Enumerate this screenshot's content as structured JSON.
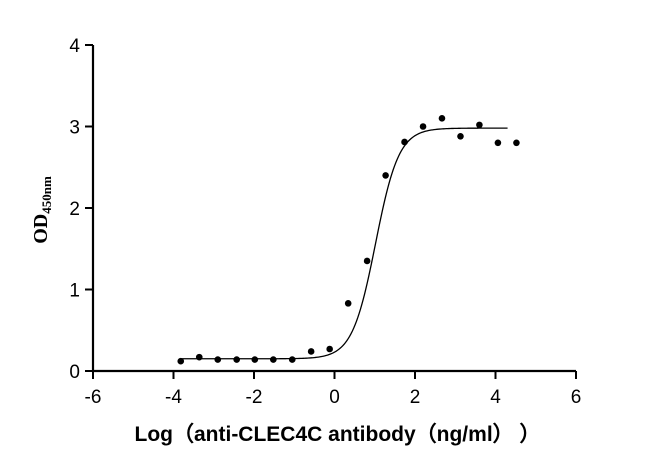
{
  "chart_data": {
    "type": "scatter",
    "title": "",
    "xlabel": "Log（anti-CLEC4C antibody（ng/ml） ）",
    "ylabel": "OD",
    "ylabel_subscript": "450nm",
    "xlim": [
      -6,
      6
    ],
    "ylim": [
      0,
      4
    ],
    "x_ticks": [
      "-6",
      "-4",
      "-2",
      "0",
      "2",
      "4",
      "6"
    ],
    "y_ticks": [
      "0",
      "1",
      "2",
      "3",
      "4"
    ],
    "grid": false,
    "legend": "none",
    "series": [
      {
        "x": [
          -3.82,
          -3.36,
          -2.9,
          -2.43,
          -1.98,
          -1.52,
          -1.05,
          -0.58,
          -0.12,
          0.34,
          0.81,
          1.27,
          1.74,
          2.2,
          2.67,
          3.13,
          3.6,
          4.06,
          4.52
        ],
        "y": [
          0.12,
          0.17,
          0.14,
          0.14,
          0.14,
          0.14,
          0.14,
          0.24,
          0.27,
          0.83,
          1.35,
          2.4,
          2.81,
          3.0,
          3.1,
          2.88,
          3.02,
          2.8,
          2.8
        ]
      }
    ],
    "fit_curve": {
      "model": "4PL",
      "bottom": 0.15,
      "top": 2.98,
      "log_ec50": 1.02,
      "hill_slope": 1.5,
      "x_range": [
        -3.82,
        4.3
      ]
    }
  }
}
